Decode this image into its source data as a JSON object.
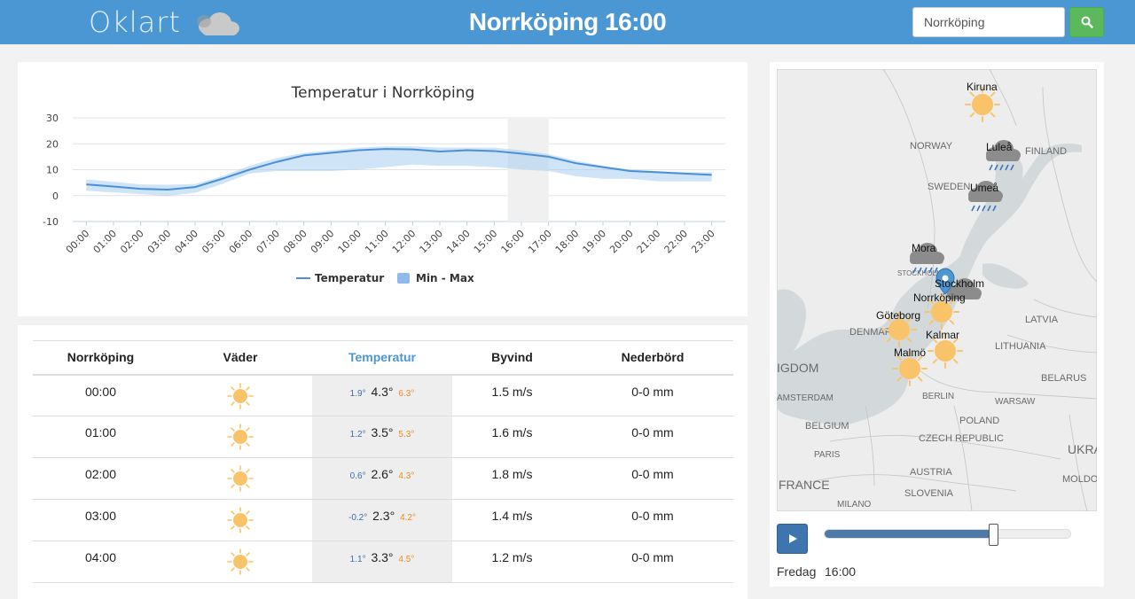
{
  "header": {
    "logo_text": "Oklart",
    "title": "Norrköping 16:00",
    "search_value": "Norrköping",
    "colors": {
      "bar": "#4a97d3",
      "search_button": "#5cb85c"
    }
  },
  "chart_data": {
    "type": "line",
    "title": "Temperatur i Norrköping",
    "x": [
      "00:00",
      "01:00",
      "02:00",
      "03:00",
      "04:00",
      "05:00",
      "06:00",
      "07:00",
      "08:00",
      "09:00",
      "10:00",
      "11:00",
      "12:00",
      "13:00",
      "14:00",
      "15:00",
      "16:00",
      "17:00",
      "18:00",
      "19:00",
      "20:00",
      "21:00",
      "22:00",
      "23:00"
    ],
    "series": [
      {
        "name": "Temperatur",
        "type": "line",
        "color": "#4a90d9",
        "values": [
          4.3,
          3.5,
          2.6,
          2.3,
          3.3,
          6.5,
          10,
          13,
          15.5,
          16.5,
          17.5,
          18,
          17.8,
          17,
          17.5,
          17.2,
          16.2,
          15,
          12.5,
          11,
          9.5,
          9,
          8.5,
          8
        ]
      },
      {
        "name": "Min - Max",
        "type": "arearange",
        "color": "#a8cdf0",
        "low": [
          1.9,
          1.2,
          0.6,
          -0.2,
          1.1,
          4.5,
          8.5,
          9.5,
          9.5,
          9.5,
          10,
          11,
          12,
          11.5,
          11.5,
          11,
          10,
          9.5,
          7.5,
          6.5,
          6.5,
          5.5,
          5.5,
          5.5
        ],
        "high": [
          6.3,
          5.3,
          4.3,
          4.2,
          4.5,
          7.5,
          11.5,
          14.5,
          16.5,
          17.5,
          18.5,
          19,
          19,
          18.5,
          18.5,
          18.5,
          17.5,
          16,
          13.5,
          11.5,
          10,
          9.5,
          9,
          9
        ]
      }
    ],
    "ylim": [
      -10,
      30
    ],
    "yticks": [
      -10,
      0,
      10,
      20,
      30
    ],
    "highlight_band": [
      "15:30",
      "17:00"
    ],
    "grid": true,
    "legend_position": "bottom"
  },
  "table": {
    "headers": [
      "Norrköping",
      "Väder",
      "Temperatur",
      "Byvind",
      "Nederbörd"
    ],
    "rows": [
      {
        "time": "00:00",
        "icon": "sun-icon",
        "tmin": "1.9°",
        "temp": "4.3°",
        "tmax": "6.3°",
        "wind": "1.5 m/s",
        "precip": "0-0 mm"
      },
      {
        "time": "01:00",
        "icon": "sun-icon",
        "tmin": "1.2°",
        "temp": "3.5°",
        "tmax": "5.3°",
        "wind": "1.6 m/s",
        "precip": "0-0 mm"
      },
      {
        "time": "02:00",
        "icon": "sun-icon",
        "tmin": "0.6°",
        "temp": "2.6°",
        "tmax": "4.3°",
        "wind": "1.8 m/s",
        "precip": "0-0 mm"
      },
      {
        "time": "03:00",
        "icon": "sun-icon",
        "tmin": "-0.2°",
        "temp": "2.3°",
        "tmax": "4.2°",
        "wind": "1.4 m/s",
        "precip": "0-0 mm"
      },
      {
        "time": "04:00",
        "icon": "sun-icon",
        "tmin": "1.1°",
        "temp": "3.3°",
        "tmax": "4.5°",
        "wind": "1.2 m/s",
        "precip": "0-0 mm"
      }
    ]
  },
  "map": {
    "cities": [
      {
        "name": "Kiruna",
        "weather": "sun"
      },
      {
        "name": "Luleå",
        "weather": "rain"
      },
      {
        "name": "Umeå",
        "weather": "rain"
      },
      {
        "name": "Mora",
        "weather": "rain"
      },
      {
        "name": "Stockholm",
        "weather": "cloud"
      },
      {
        "name": "Norrköping",
        "weather": "sun"
      },
      {
        "name": "Göteborg",
        "weather": "sun"
      },
      {
        "name": "Kalmar",
        "weather": "sun"
      },
      {
        "name": "Malmö",
        "weather": "sun"
      }
    ],
    "base_labels": [
      "NORWAY",
      "FINLAND",
      "SWEDEN",
      "LATVIA",
      "DENMARK",
      "LITHUANIA",
      "BELARUS",
      "IGDOM",
      "BERLIN",
      "WARSAW",
      "AMSTERDAM",
      "BELGIUM",
      "CZECH REPUBLIC",
      "POLAND",
      "UKRA",
      "PARIS",
      "FRANCE",
      "AUSTRIA",
      "SLOVENIA",
      "MOLDOVA",
      "MILANO",
      "STOCKHOLM"
    ],
    "player": {
      "day": "Fredag",
      "time": "16:00",
      "progress": 0.68
    }
  }
}
